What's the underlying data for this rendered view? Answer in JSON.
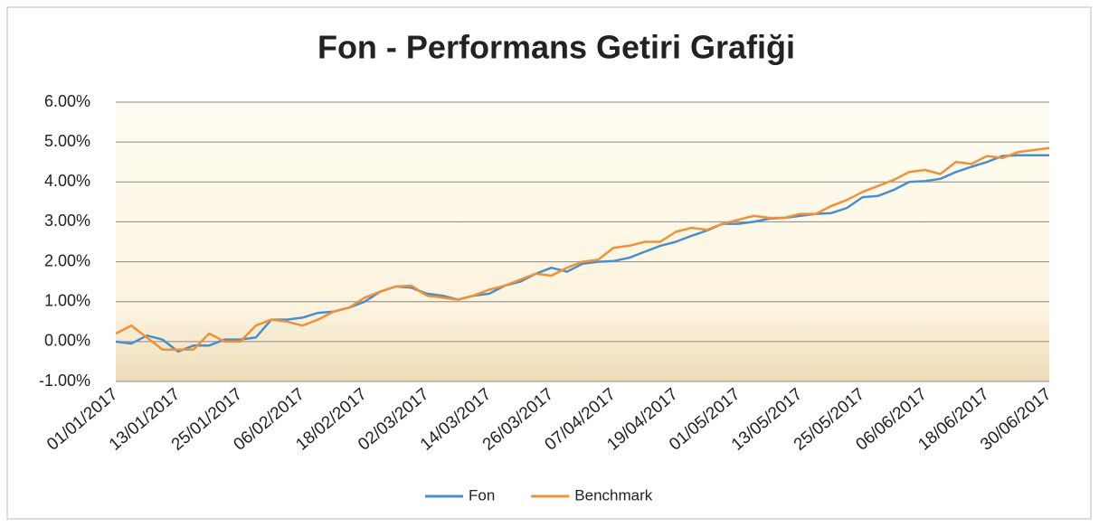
{
  "chart_data": {
    "type": "line",
    "title": "Fon - Performans Getiri Grafiği",
    "categories": [
      "01/01/2017",
      null,
      null,
      null,
      "13/01/2017",
      null,
      null,
      null,
      "25/01/2017",
      null,
      null,
      null,
      "06/02/2017",
      null,
      null,
      null,
      "18/02/2017",
      null,
      null,
      null,
      "02/03/2017",
      null,
      null,
      null,
      "14/03/2017",
      null,
      null,
      null,
      "26/03/2017",
      null,
      null,
      null,
      "07/04/2017",
      null,
      null,
      null,
      "19/04/2017",
      null,
      null,
      null,
      "01/05/2017",
      null,
      null,
      null,
      "13/05/2017",
      null,
      null,
      null,
      "25/05/2017",
      null,
      null,
      null,
      "06/06/2017",
      null,
      null,
      null,
      "18/06/2017",
      null,
      null,
      null,
      "30/06/2017"
    ],
    "series": [
      {
        "name": "Fon",
        "color": "#4a8fcb",
        "values": [
          0.0,
          -0.05,
          0.15,
          0.05,
          -0.25,
          -0.1,
          -0.1,
          0.05,
          0.05,
          0.1,
          0.55,
          0.55,
          0.6,
          0.72,
          0.75,
          0.85,
          1.0,
          1.25,
          1.38,
          1.35,
          1.2,
          1.15,
          1.05,
          1.15,
          1.2,
          1.4,
          1.5,
          1.7,
          1.85,
          1.75,
          1.95,
          2.0,
          2.02,
          2.1,
          2.25,
          2.4,
          2.5,
          2.65,
          2.78,
          2.95,
          2.95,
          3.0,
          3.08,
          3.1,
          3.15,
          3.2,
          3.22,
          3.35,
          3.62,
          3.65,
          3.8,
          4.0,
          4.02,
          4.08,
          4.25,
          4.38,
          4.5,
          4.65,
          4.67,
          4.67,
          4.67
        ]
      },
      {
        "name": "Benchmark",
        "color": "#f0913a",
        "values": [
          0.2,
          0.4,
          0.1,
          -0.2,
          -0.2,
          -0.2,
          0.2,
          0.0,
          0.0,
          0.4,
          0.55,
          0.5,
          0.4,
          0.55,
          0.75,
          0.85,
          1.1,
          1.25,
          1.38,
          1.4,
          1.15,
          1.1,
          1.05,
          1.15,
          1.3,
          1.4,
          1.55,
          1.7,
          1.65,
          1.85,
          2.0,
          2.05,
          2.35,
          2.4,
          2.5,
          2.5,
          2.75,
          2.85,
          2.8,
          2.95,
          3.05,
          3.15,
          3.1,
          3.1,
          3.2,
          3.2,
          3.4,
          3.55,
          3.75,
          3.9,
          4.05,
          4.25,
          4.3,
          4.2,
          4.5,
          4.45,
          4.65,
          4.6,
          4.75,
          4.8,
          4.85
        ]
      }
    ],
    "ylim": [
      -1,
      6
    ],
    "yticks": [
      {
        "value": -1,
        "label": "-1.00%"
      },
      {
        "value": 0,
        "label": "0.00%"
      },
      {
        "value": 1,
        "label": "1.00%"
      },
      {
        "value": 2,
        "label": "2.00%"
      },
      {
        "value": 3,
        "label": "3.00%"
      },
      {
        "value": 4,
        "label": "4.00%"
      },
      {
        "value": 5,
        "label": "5.00%"
      },
      {
        "value": 6,
        "label": "6.00%"
      }
    ],
    "grid": true,
    "legend": "bottom"
  }
}
